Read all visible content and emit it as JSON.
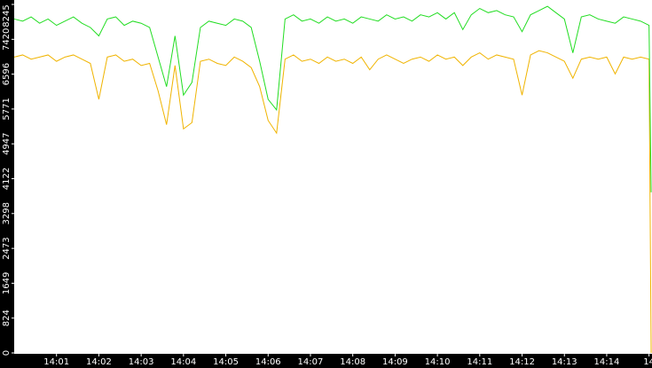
{
  "chart_data": {
    "type": "line",
    "x": [
      840,
      840.2,
      840.4,
      840.6,
      840.8,
      841,
      841.2,
      841.4,
      841.6,
      841.8,
      842,
      842.2,
      842.4,
      842.6,
      842.8,
      843,
      843.2,
      843.4,
      843.6,
      843.8,
      844,
      844.2,
      844.4,
      844.6,
      844.8,
      845,
      845.2,
      845.4,
      845.6,
      845.8,
      846,
      846.2,
      846.4,
      846.6,
      846.8,
      847,
      847.2,
      847.4,
      847.6,
      847.8,
      848,
      848.2,
      848.4,
      848.6,
      848.8,
      849,
      849.2,
      849.4,
      849.6,
      849.8,
      850,
      850.2,
      850.4,
      850.6,
      850.8,
      851,
      851.2,
      851.4,
      851.6,
      851.8,
      852,
      852.2,
      852.4,
      852.6,
      852.8,
      853,
      853.2,
      853.4,
      853.6,
      853.8,
      854,
      854.2,
      854.4,
      854.6,
      854.8,
      855,
      855.05
    ],
    "series": [
      {
        "color": "#22dd22",
        "values": [
          7900,
          7850,
          7950,
          7800,
          7900,
          7750,
          7850,
          7950,
          7800,
          7700,
          7500,
          7900,
          7950,
          7750,
          7850,
          7800,
          7700,
          7000,
          6300,
          7500,
          6100,
          6400,
          7700,
          7850,
          7800,
          7750,
          7900,
          7850,
          7700,
          6900,
          6000,
          5750,
          7900,
          8000,
          7850,
          7900,
          7800,
          7950,
          7850,
          7900,
          7800,
          7950,
          7900,
          7850,
          8000,
          7900,
          7950,
          7850,
          8000,
          7950,
          8050,
          7900,
          8050,
          7650,
          8000,
          8150,
          8050,
          8100,
          8000,
          7950,
          7600,
          8000,
          8100,
          8200,
          8050,
          7900,
          7100,
          7950,
          8000,
          7900,
          7850,
          7800,
          7950,
          7900,
          7850,
          7750,
          3800
        ]
      },
      {
        "color": "#f0b400",
        "values": [
          7000,
          7050,
          6950,
          7000,
          7050,
          6900,
          7000,
          7050,
          6950,
          6850,
          6000,
          7000,
          7050,
          6900,
          6950,
          6800,
          6850,
          6200,
          5400,
          6800,
          5300,
          5450,
          6900,
          6950,
          6850,
          6800,
          7000,
          6900,
          6750,
          6300,
          5500,
          5200,
          6950,
          7050,
          6900,
          6950,
          6850,
          7000,
          6900,
          6950,
          6850,
          7000,
          6700,
          6950,
          7050,
          6950,
          6850,
          6950,
          7000,
          6900,
          7050,
          6950,
          7000,
          6800,
          7000,
          7100,
          6950,
          7050,
          7000,
          6950,
          6100,
          7050,
          7150,
          7100,
          7000,
          6900,
          6500,
          6950,
          7000,
          6950,
          7000,
          6600,
          7000,
          6950,
          7000,
          6950,
          0
        ]
      }
    ],
    "xlim": [
      840,
      855.07
    ],
    "xticks": [
      {
        "value": 841,
        "label": "14:01"
      },
      {
        "value": 842,
        "label": "14:02"
      },
      {
        "value": 843,
        "label": "14:03"
      },
      {
        "value": 844,
        "label": "14:04"
      },
      {
        "value": 845,
        "label": "14:05"
      },
      {
        "value": 846,
        "label": "14:06"
      },
      {
        "value": 847,
        "label": "14:07"
      },
      {
        "value": 848,
        "label": "14:08"
      },
      {
        "value": 849,
        "label": "14:09"
      },
      {
        "value": 850,
        "label": "14:10"
      },
      {
        "value": 851,
        "label": "14:11"
      },
      {
        "value": 852,
        "label": "14:12"
      },
      {
        "value": 853,
        "label": "14:13"
      },
      {
        "value": 854,
        "label": "14:14"
      },
      {
        "value": 855,
        "label": "14"
      }
    ],
    "ylim": [
      0,
      8245
    ],
    "yticks": [
      0,
      824,
      1649,
      2473,
      3298,
      4122,
      4947,
      5771,
      6596,
      7420,
      8245
    ]
  }
}
